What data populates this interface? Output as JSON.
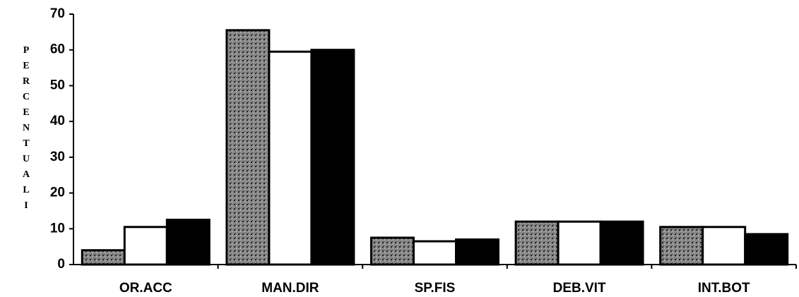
{
  "chart_data": {
    "type": "bar",
    "y_label": "PERCENTUALI",
    "categories": [
      "OR.ACC",
      "MAN.DIR",
      "SP.FIS",
      "DEB.VIT",
      "INT.BOT"
    ],
    "series": [
      {
        "color": "#6e6e6e",
        "values": [
          4,
          65.5,
          7.5,
          12,
          10.5
        ]
      },
      {
        "color": "#ffffff",
        "values": [
          10.5,
          59.5,
          6.5,
          12,
          10.5
        ]
      },
      {
        "color": "#000000",
        "values": [
          12.5,
          60,
          7,
          12,
          8.5
        ]
      }
    ],
    "ylim": [
      0,
      70
    ],
    "yticks": [
      0,
      10,
      20,
      30,
      40,
      50,
      60,
      70
    ],
    "grid": false
  }
}
